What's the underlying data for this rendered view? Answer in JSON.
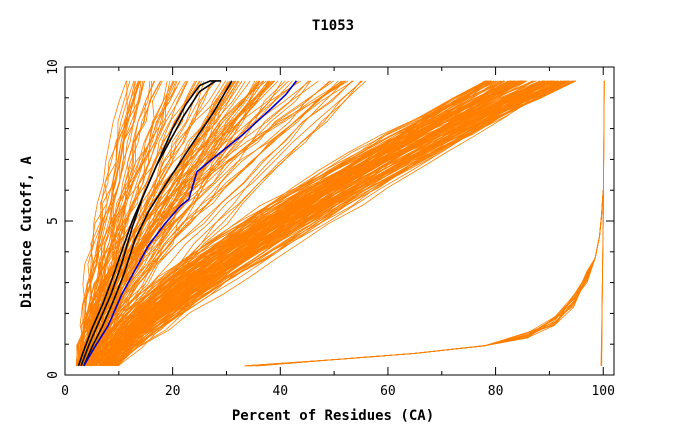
{
  "chart_data": {
    "type": "line",
    "title": "T1053",
    "xlabel": "Percent of Residues (CA)",
    "ylabel": "Distance Cutoff, A",
    "xlim": [
      0,
      102
    ],
    "ylim": [
      0,
      10
    ],
    "x_ticks": [
      "0",
      "20",
      "40",
      "60",
      "80",
      "100"
    ],
    "y_ticks": [
      "0",
      "5",
      "10"
    ],
    "grid": false,
    "colors": {
      "orange_series": "#ff7f00",
      "highlight_black": "#000000",
      "highlight_blue": "#0000cc",
      "axis": "#000000",
      "background": "#ffffff"
    },
    "series": [
      {
        "x": [
          2.5,
          3.5,
          5,
          7,
          8.5,
          10.5,
          12.5,
          15,
          17.5,
          20,
          22.5,
          25,
          27,
          29
        ],
        "y": [
          0.3,
          0.8,
          1.5,
          2.3,
          3,
          4,
          5,
          6,
          7,
          8,
          8.8,
          9.4,
          9.55,
          9.55
        ],
        "color": "#000000"
      },
      {
        "x": [
          3,
          4.5,
          6.5,
          8.5,
          10.5,
          12.5,
          14.5,
          17,
          19.5,
          22,
          25,
          28
        ],
        "y": [
          0.3,
          1,
          1.8,
          2.6,
          3.6,
          4.8,
          5.8,
          6.8,
          7.6,
          8.4,
          9.2,
          9.55
        ],
        "color": "#000000"
      },
      {
        "x": [
          3.5,
          5,
          7,
          9,
          11,
          13,
          15.5,
          18,
          21,
          24,
          27.5,
          31
        ],
        "y": [
          0.3,
          0.9,
          1.6,
          2.4,
          3.3,
          4.4,
          5.3,
          6,
          6.8,
          7.6,
          8.5,
          9.55
        ],
        "color": "#000000"
      },
      {
        "x": [
          3.5,
          5.5,
          8,
          10.5,
          13,
          15.5,
          18.5,
          21.5,
          23,
          24.5,
          28,
          33,
          38,
          41,
          43
        ],
        "y": [
          0.3,
          0.9,
          1.6,
          2.6,
          3.4,
          4.2,
          4.9,
          5.5,
          5.7,
          6.6,
          7.1,
          7.8,
          8.6,
          9.1,
          9.55
        ],
        "color": "#0000cc"
      }
    ]
  }
}
